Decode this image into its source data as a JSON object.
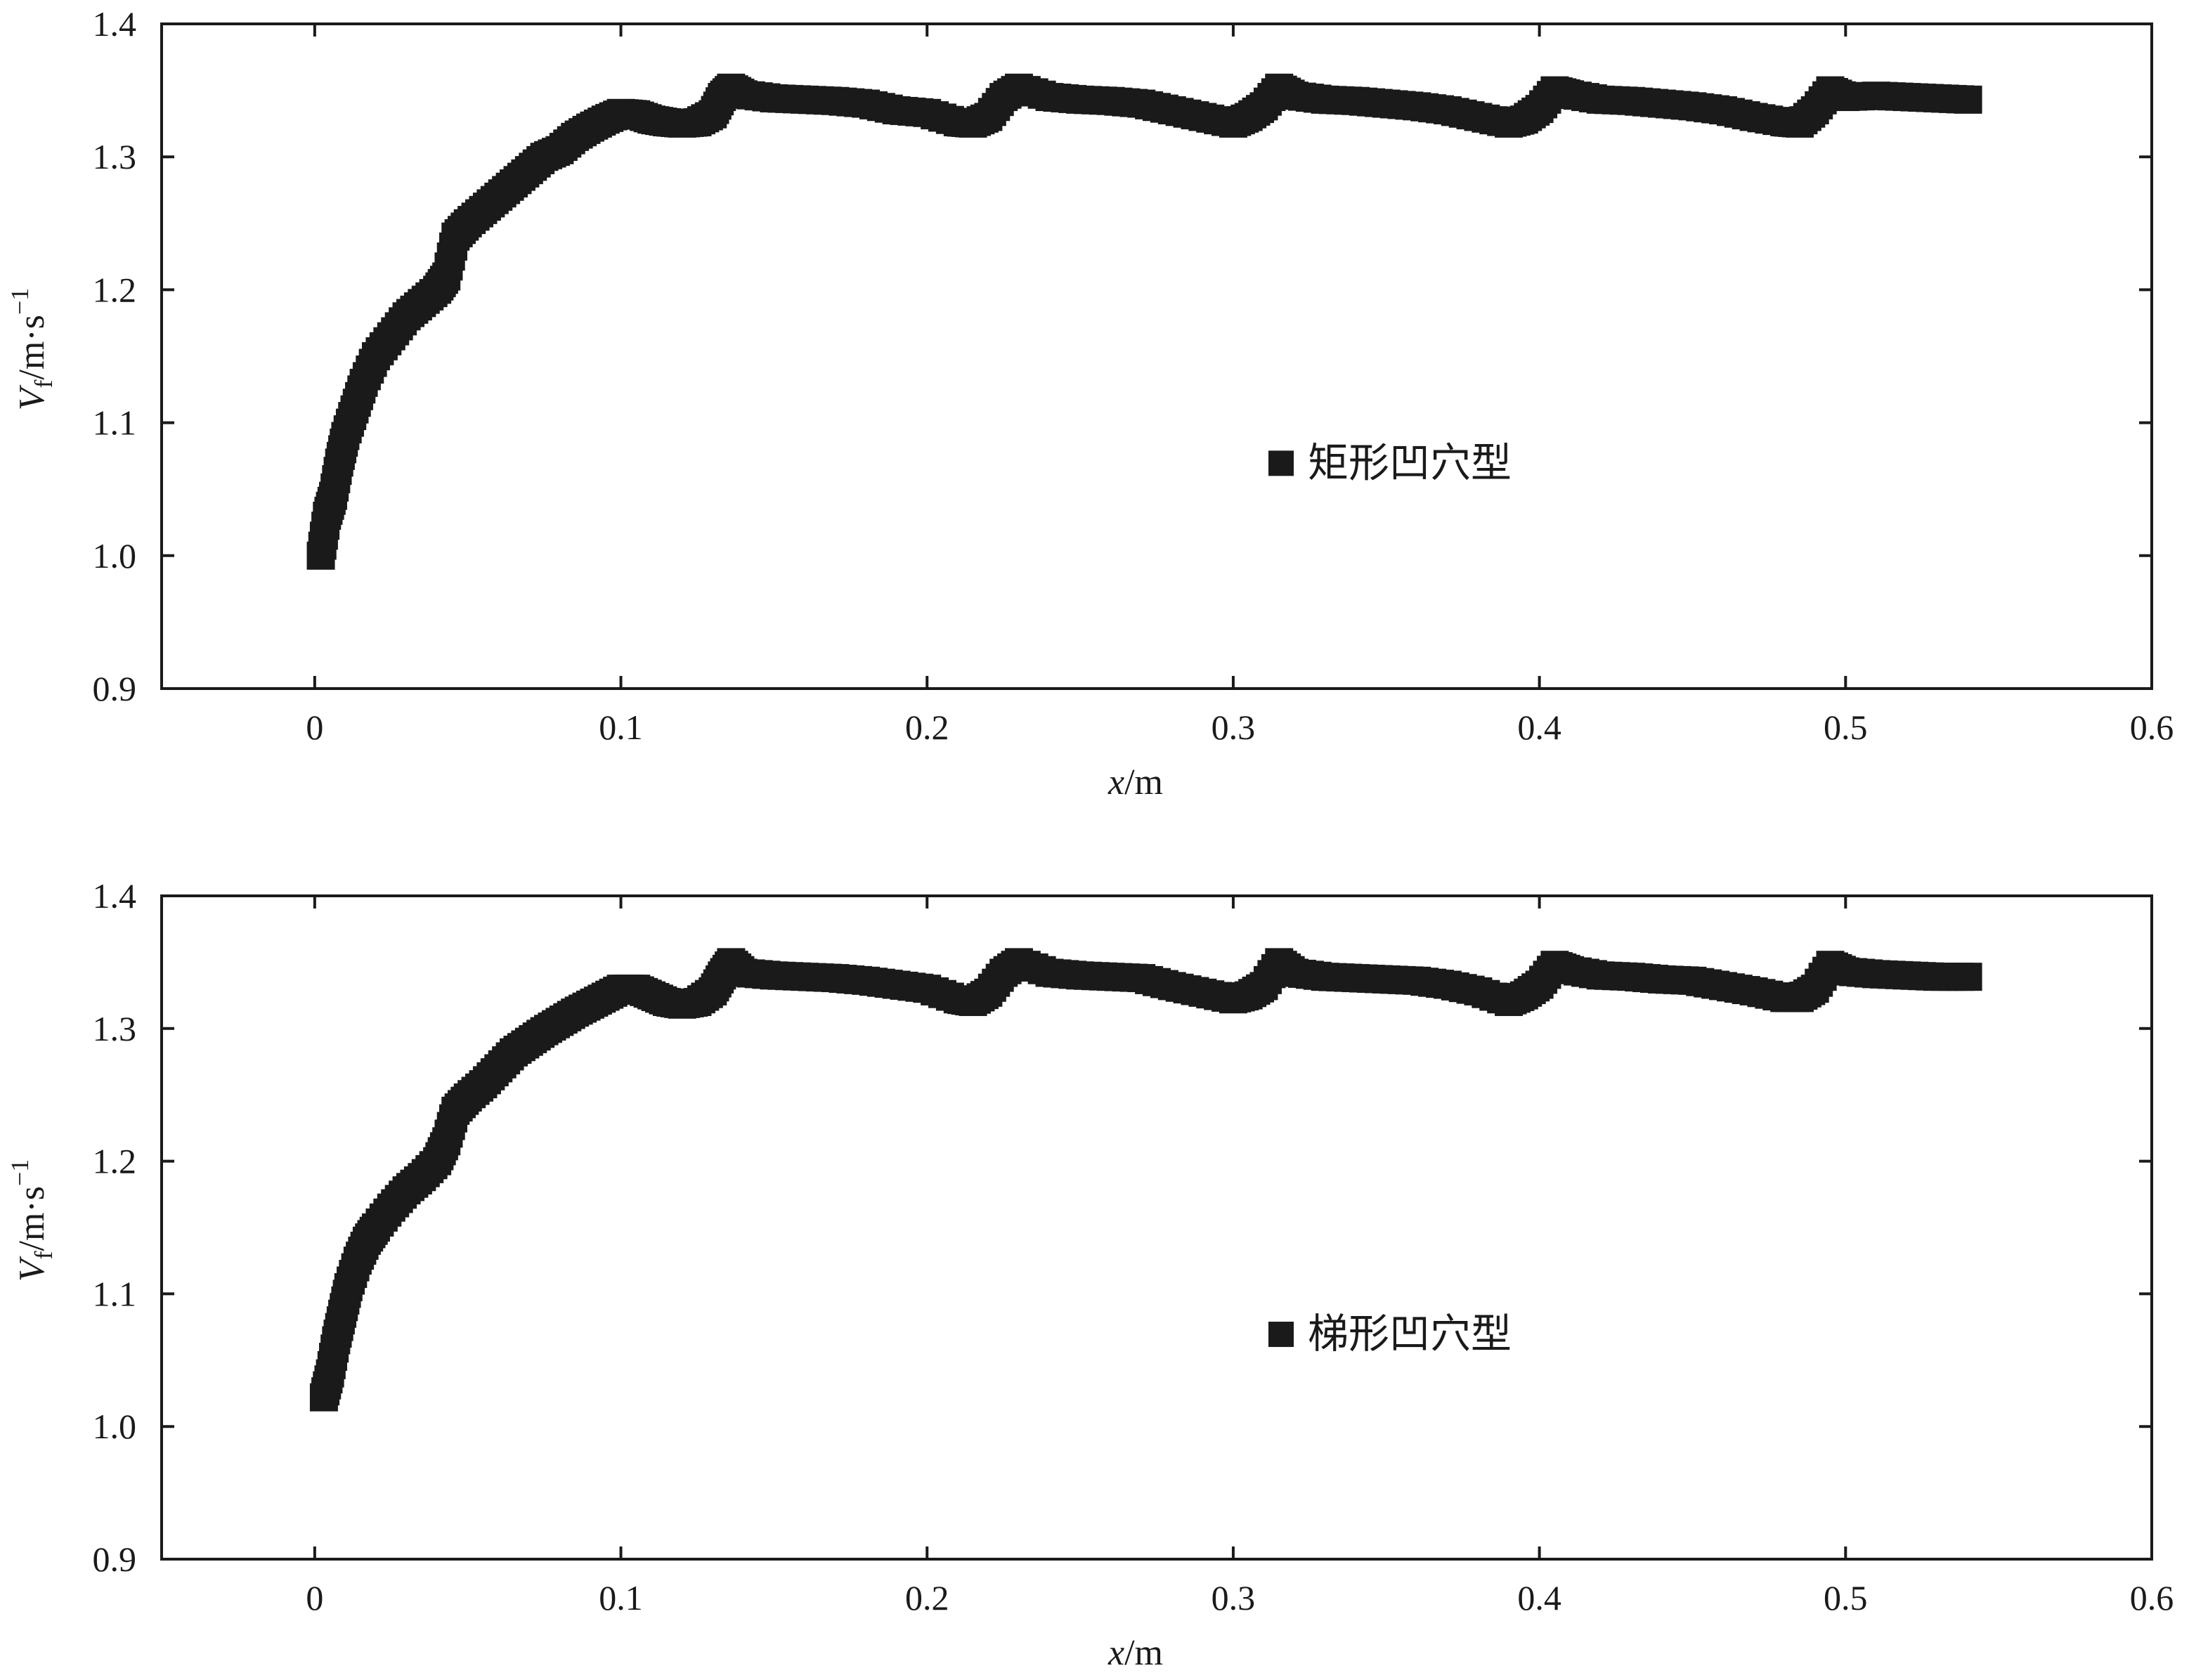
{
  "chart_data": [
    {
      "type": "scatter",
      "xlim": [
        -0.05,
        0.6
      ],
      "ylim": [
        0.9,
        1.4
      ],
      "x_ticks": [
        "0",
        "0.1",
        "0.2",
        "0.3",
        "0.4",
        "0.5",
        "0.6"
      ],
      "y_ticks": [
        "0.9",
        "1.0",
        "1.1",
        "1.2",
        "1.3",
        "1.4"
      ],
      "xlabel": {
        "var": "x",
        "unit": "/m"
      },
      "ylabel": {
        "var": "V",
        "sub": "f",
        "unit": "/m·s",
        "sup": "−1"
      },
      "legend_position": "center-right",
      "marker_color": "#1a1a1a",
      "series": [
        {
          "name": "矩形凹穴型",
          "x": [
            0.002,
            0.004,
            0.006,
            0.008,
            0.01,
            0.013,
            0.016,
            0.02,
            0.025,
            0.03,
            0.035,
            0.04,
            0.043,
            0.046,
            0.05,
            0.055,
            0.06,
            0.065,
            0.07,
            0.075,
            0.08,
            0.085,
            0.09,
            0.095,
            0.1,
            0.105,
            0.11,
            0.115,
            0.12,
            0.125,
            0.13,
            0.133,
            0.136,
            0.14,
            0.15,
            0.16,
            0.17,
            0.18,
            0.19,
            0.2,
            0.21,
            0.215,
            0.22,
            0.225,
            0.23,
            0.24,
            0.25,
            0.26,
            0.27,
            0.28,
            0.29,
            0.3,
            0.305,
            0.31,
            0.315,
            0.32,
            0.33,
            0.34,
            0.35,
            0.36,
            0.37,
            0.38,
            0.39,
            0.395,
            0.4,
            0.405,
            0.41,
            0.42,
            0.43,
            0.44,
            0.45,
            0.46,
            0.47,
            0.48,
            0.485,
            0.49,
            0.495,
            0.5,
            0.51,
            0.52,
            0.53,
            0.54
          ],
          "y": [
            1.0,
            1.03,
            1.045,
            1.07,
            1.09,
            1.11,
            1.13,
            1.15,
            1.165,
            1.18,
            1.19,
            1.2,
            1.21,
            1.24,
            1.25,
            1.26,
            1.27,
            1.28,
            1.29,
            1.3,
            1.305,
            1.315,
            1.322,
            1.328,
            1.333,
            1.332,
            1.328,
            1.326,
            1.325,
            1.326,
            1.332,
            1.345,
            1.352,
            1.347,
            1.344,
            1.343,
            1.342,
            1.34,
            1.335,
            1.333,
            1.326,
            1.325,
            1.33,
            1.345,
            1.352,
            1.345,
            1.343,
            1.342,
            1.34,
            1.335,
            1.33,
            1.325,
            1.33,
            1.338,
            1.352,
            1.346,
            1.343,
            1.342,
            1.34,
            1.338,
            1.335,
            1.33,
            1.325,
            1.328,
            1.336,
            1.35,
            1.347,
            1.343,
            1.342,
            1.34,
            1.338,
            1.335,
            1.33,
            1.326,
            1.325,
            1.335,
            1.35,
            1.345,
            1.346,
            1.345,
            1.344,
            1.343
          ]
        }
      ]
    },
    {
      "type": "scatter",
      "xlim": [
        -0.05,
        0.6
      ],
      "ylim": [
        0.9,
        1.4
      ],
      "x_ticks": [
        "0",
        "0.1",
        "0.2",
        "0.3",
        "0.4",
        "0.5",
        "0.6"
      ],
      "y_ticks": [
        "0.9",
        "1.0",
        "1.1",
        "1.2",
        "1.3",
        "1.4"
      ],
      "xlabel": {
        "var": "x",
        "unit": "/m"
      },
      "ylabel": {
        "var": "V",
        "sub": "f",
        "unit": "/m·s",
        "sup": "−1"
      },
      "legend_position": "center-right",
      "marker_color": "#1a1a1a",
      "series": [
        {
          "name": "梯形凹穴型",
          "x": [
            0.003,
            0.005,
            0.007,
            0.009,
            0.011,
            0.014,
            0.017,
            0.02,
            0.025,
            0.03,
            0.035,
            0.04,
            0.043,
            0.046,
            0.05,
            0.055,
            0.06,
            0.065,
            0.07,
            0.075,
            0.08,
            0.085,
            0.09,
            0.095,
            0.1,
            0.105,
            0.11,
            0.115,
            0.12,
            0.125,
            0.13,
            0.133,
            0.136,
            0.14,
            0.15,
            0.16,
            0.17,
            0.18,
            0.19,
            0.2,
            0.21,
            0.215,
            0.22,
            0.225,
            0.23,
            0.24,
            0.25,
            0.26,
            0.27,
            0.28,
            0.29,
            0.3,
            0.305,
            0.31,
            0.315,
            0.32,
            0.33,
            0.34,
            0.35,
            0.36,
            0.37,
            0.38,
            0.39,
            0.395,
            0.4,
            0.405,
            0.41,
            0.42,
            0.43,
            0.44,
            0.45,
            0.46,
            0.47,
            0.48,
            0.485,
            0.49,
            0.495,
            0.5,
            0.51,
            0.52,
            0.53,
            0.54
          ],
          "y": [
            1.022,
            1.04,
            1.065,
            1.085,
            1.105,
            1.125,
            1.14,
            1.15,
            1.165,
            1.178,
            1.188,
            1.2,
            1.215,
            1.238,
            1.248,
            1.258,
            1.27,
            1.282,
            1.29,
            1.298,
            1.305,
            1.312,
            1.318,
            1.324,
            1.33,
            1.33,
            1.325,
            1.32,
            1.318,
            1.32,
            1.328,
            1.34,
            1.35,
            1.342,
            1.34,
            1.339,
            1.338,
            1.336,
            1.333,
            1.33,
            1.322,
            1.32,
            1.327,
            1.342,
            1.35,
            1.342,
            1.34,
            1.339,
            1.338,
            1.332,
            1.327,
            1.322,
            1.325,
            1.332,
            1.35,
            1.342,
            1.339,
            1.338,
            1.337,
            1.336,
            1.333,
            1.328,
            1.32,
            1.325,
            1.333,
            1.348,
            1.344,
            1.34,
            1.339,
            1.337,
            1.336,
            1.332,
            1.328,
            1.323,
            1.323,
            1.33,
            1.348,
            1.343,
            1.341,
            1.34,
            1.339,
            1.339
          ]
        }
      ]
    }
  ]
}
